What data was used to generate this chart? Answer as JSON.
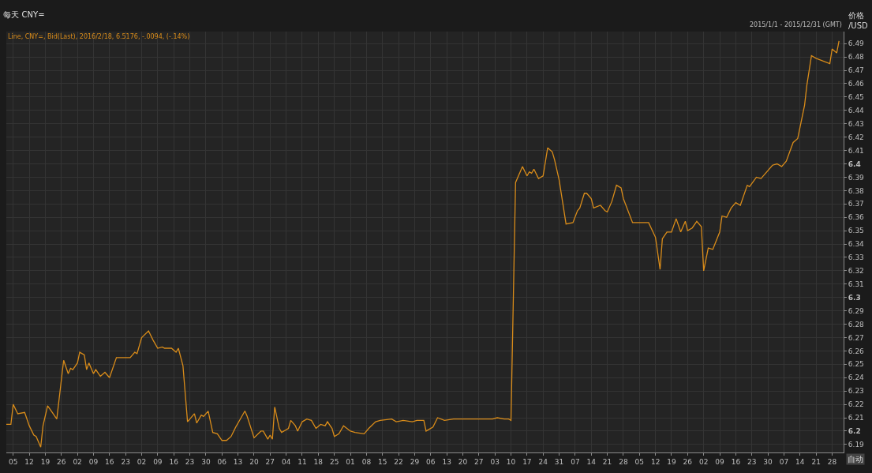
{
  "chart_data": {
    "type": "line",
    "title": "每天 CNY=",
    "subtitle": "Line, CNY=, Bid(Last), 2016/2/18, 6.5176, -.0094, (-.14%)",
    "ylabel": "价格 /USD",
    "annotations": [
      "2015/1/1 - 2015/12/31 (GMT)",
      "自动"
    ],
    "x": [
      "2015-01-02",
      "2015-01-04",
      "2015-01-05",
      "2015-01-07",
      "2015-01-10",
      "2015-01-12",
      "2015-01-14",
      "2015-01-15",
      "2015-01-17",
      "2015-01-18",
      "2015-01-20",
      "2015-01-22",
      "2015-01-24",
      "2015-01-27",
      "2015-01-29",
      "2015-01-30",
      "2015-01-31",
      "2015-02-02",
      "2015-02-03",
      "2015-02-05",
      "2015-02-06",
      "2015-02-07",
      "2015-02-09",
      "2015-02-10",
      "2015-02-12",
      "2015-02-14",
      "2015-02-16",
      "2015-02-19",
      "2015-02-25",
      "2015-02-27",
      "2015-02-28",
      "2015-03-02",
      "2015-03-05",
      "2015-03-07",
      "2015-03-09",
      "2015-03-11",
      "2015-03-12",
      "2015-03-15",
      "2015-03-17",
      "2015-03-18",
      "2015-03-20",
      "2015-03-22",
      "2015-03-25",
      "2015-03-26",
      "2015-03-28",
      "2015-03-29",
      "2015-03-31",
      "2015-04-02",
      "2015-04-04",
      "2015-04-06",
      "2015-04-08",
      "2015-04-10",
      "2015-04-12",
      "2015-04-14",
      "2015-04-16",
      "2015-04-17",
      "2015-04-20",
      "2015-04-23",
      "2015-04-24",
      "2015-04-26",
      "2015-04-27",
      "2015-04-28",
      "2015-04-29",
      "2015-05-01",
      "2015-05-02",
      "2015-05-05",
      "2015-05-06",
      "2015-05-08",
      "2015-05-09",
      "2015-05-11",
      "2015-05-13",
      "2015-05-15",
      "2015-05-17",
      "2015-05-19",
      "2015-05-21",
      "2015-05-22",
      "2015-05-24",
      "2015-05-25",
      "2015-05-27",
      "2015-05-29",
      "2015-06-01",
      "2015-06-03",
      "2015-06-07",
      "2015-06-09",
      "2015-06-12",
      "2015-06-14",
      "2015-06-19",
      "2015-06-21",
      "2015-06-24",
      "2015-06-28",
      "2015-06-30",
      "2015-07-03",
      "2015-07-04",
      "2015-07-07",
      "2015-07-09",
      "2015-07-12",
      "2015-07-16",
      "2015-07-21",
      "2015-07-26",
      "2015-07-30",
      "2015-08-02",
      "2015-08-04",
      "2015-08-07",
      "2015-08-09",
      "2015-08-10",
      "2015-08-12",
      "2015-08-15",
      "2015-08-17",
      "2015-08-18",
      "2015-08-19",
      "2015-08-20",
      "2015-08-22",
      "2015-08-24",
      "2015-08-26",
      "2015-08-28",
      "2015-08-29",
      "2015-08-31",
      "2015-09-03",
      "2015-09-06",
      "2015-09-08",
      "2015-09-09",
      "2015-09-11",
      "2015-09-12",
      "2015-09-14",
      "2015-09-15",
      "2015-09-18",
      "2015-09-20",
      "2015-09-21",
      "2015-09-23",
      "2015-09-25",
      "2015-09-27",
      "2015-09-28",
      "2015-10-02",
      "2015-10-09",
      "2015-10-12",
      "2015-10-14",
      "2015-10-15",
      "2015-10-17",
      "2015-10-19",
      "2015-10-21",
      "2015-10-23",
      "2015-10-25",
      "2015-10-26",
      "2015-10-28",
      "2015-10-30",
      "2015-11-01",
      "2015-11-02",
      "2015-11-04",
      "2015-11-06",
      "2015-11-09",
      "2015-11-10",
      "2015-11-12",
      "2015-11-14",
      "2015-11-16",
      "2015-11-18",
      "2015-11-21",
      "2015-11-22",
      "2015-11-25",
      "2015-11-27",
      "2015-12-02",
      "2015-12-04",
      "2015-12-06",
      "2015-12-08",
      "2015-12-11",
      "2015-12-13",
      "2015-12-16",
      "2015-12-17",
      "2015-12-19",
      "2015-12-21",
      "2015-12-27",
      "2015-12-28",
      "2015-12-30",
      "2015-12-31"
    ],
    "series": [
      {
        "color": "#d98c1a",
        "values": [
          6.205,
          6.205,
          6.22,
          6.213,
          6.214,
          6.204,
          6.197,
          6.196,
          6.188,
          6.204,
          6.219,
          6.214,
          6.209,
          6.253,
          6.243,
          6.247,
          6.246,
          6.251,
          6.259,
          6.257,
          6.246,
          6.251,
          6.243,
          6.246,
          6.241,
          6.244,
          6.24,
          6.255,
          6.255,
          6.259,
          6.258,
          6.27,
          6.275,
          6.268,
          6.262,
          6.263,
          6.262,
          6.262,
          6.259,
          6.262,
          6.249,
          6.207,
          6.213,
          6.206,
          6.212,
          6.211,
          6.215,
          6.199,
          6.198,
          6.193,
          6.193,
          6.196,
          6.203,
          6.209,
          6.215,
          6.211,
          6.195,
          6.2,
          6.2,
          6.194,
          6.197,
          6.194,
          6.218,
          6.202,
          6.199,
          6.202,
          6.208,
          6.204,
          6.2,
          6.207,
          6.209,
          6.208,
          6.202,
          6.205,
          6.204,
          6.207,
          6.202,
          6.196,
          6.198,
          6.204,
          6.2,
          6.199,
          6.198,
          6.202,
          6.207,
          6.208,
          6.209,
          6.207,
          6.208,
          6.207,
          6.208,
          6.208,
          6.2,
          6.203,
          6.21,
          6.208,
          6.209,
          6.209,
          6.209,
          6.209,
          6.209,
          6.21,
          6.209,
          6.209,
          6.208,
          6.386,
          6.398,
          6.391,
          6.394,
          6.393,
          6.396,
          6.389,
          6.391,
          6.412,
          6.409,
          6.403,
          6.388,
          6.355,
          6.356,
          6.365,
          6.367,
          6.378,
          6.378,
          6.374,
          6.367,
          6.369,
          6.365,
          6.364,
          6.372,
          6.384,
          6.382,
          6.374,
          6.356,
          6.356,
          6.345,
          6.321,
          6.344,
          6.349,
          6.349,
          6.359,
          6.349,
          6.357,
          6.35,
          6.352,
          6.357,
          6.353,
          6.32,
          6.337,
          6.336,
          6.349,
          6.361,
          6.36,
          6.367,
          6.371,
          6.369,
          6.384,
          6.383,
          6.39,
          6.389,
          6.399,
          6.4,
          6.398,
          6.402,
          6.416,
          6.419,
          6.444,
          6.459,
          6.481,
          6.479,
          6.475,
          6.486,
          6.483,
          6.492
        ]
      }
    ],
    "xlim": [
      "2015-01-02",
      "2016-01-02"
    ],
    "xticks": [
      {
        "value": "2015-01-05",
        "label": "05"
      },
      {
        "value": "2015-01-12",
        "label": "12"
      },
      {
        "value": "2015-01-19",
        "label": "19"
      },
      {
        "value": "2015-01-26",
        "label": "26"
      },
      {
        "value": "2015-02-02",
        "label": "02"
      },
      {
        "value": "2015-02-09",
        "label": "09"
      },
      {
        "value": "2015-02-16",
        "label": "16"
      },
      {
        "value": "2015-02-23",
        "label": "23"
      },
      {
        "value": "2015-03-02",
        "label": "02"
      },
      {
        "value": "2015-03-09",
        "label": "09"
      },
      {
        "value": "2015-03-16",
        "label": "16"
      },
      {
        "value": "2015-03-23",
        "label": "23"
      },
      {
        "value": "2015-03-30",
        "label": "30"
      },
      {
        "value": "2015-04-06",
        "label": "06"
      },
      {
        "value": "2015-04-13",
        "label": "13"
      },
      {
        "value": "2015-04-20",
        "label": "20"
      },
      {
        "value": "2015-04-27",
        "label": "27"
      },
      {
        "value": "2015-05-04",
        "label": "04"
      },
      {
        "value": "2015-05-11",
        "label": "11"
      },
      {
        "value": "2015-05-18",
        "label": "18"
      },
      {
        "value": "2015-05-25",
        "label": "25"
      },
      {
        "value": "2015-06-01",
        "label": "01"
      },
      {
        "value": "2015-06-08",
        "label": "08"
      },
      {
        "value": "2015-06-15",
        "label": "15"
      },
      {
        "value": "2015-06-22",
        "label": "22"
      },
      {
        "value": "2015-06-29",
        "label": "29"
      },
      {
        "value": "2015-07-06",
        "label": "06"
      },
      {
        "value": "2015-07-13",
        "label": "13"
      },
      {
        "value": "2015-07-20",
        "label": "20"
      },
      {
        "value": "2015-07-27",
        "label": "27"
      },
      {
        "value": "2015-08-03",
        "label": "03"
      },
      {
        "value": "2015-08-10",
        "label": "10"
      },
      {
        "value": "2015-08-17",
        "label": "17"
      },
      {
        "value": "2015-08-24",
        "label": "24"
      },
      {
        "value": "2015-08-31",
        "label": "31"
      },
      {
        "value": "2015-09-07",
        "label": "07"
      },
      {
        "value": "2015-09-14",
        "label": "14"
      },
      {
        "value": "2015-09-21",
        "label": "21"
      },
      {
        "value": "2015-09-28",
        "label": "28"
      },
      {
        "value": "2015-10-05",
        "label": "05"
      },
      {
        "value": "2015-10-12",
        "label": "12"
      },
      {
        "value": "2015-10-19",
        "label": "19"
      },
      {
        "value": "2015-10-26",
        "label": "26"
      },
      {
        "value": "2015-11-02",
        "label": "02"
      },
      {
        "value": "2015-11-09",
        "label": "09"
      },
      {
        "value": "2015-11-16",
        "label": "16"
      },
      {
        "value": "2015-11-23",
        "label": "23"
      },
      {
        "value": "2015-11-30",
        "label": "30"
      },
      {
        "value": "2015-12-07",
        "label": "07"
      },
      {
        "value": "2015-12-14",
        "label": "14"
      },
      {
        "value": "2015-12-21",
        "label": "21"
      },
      {
        "value": "2015-12-28",
        "label": "28"
      }
    ],
    "ylim": [
      6.184,
      6.499
    ],
    "yticks": [
      6.19,
      6.2,
      6.21,
      6.22,
      6.23,
      6.24,
      6.25,
      6.26,
      6.27,
      6.28,
      6.29,
      6.3,
      6.31,
      6.32,
      6.33,
      6.34,
      6.35,
      6.36,
      6.37,
      6.38,
      6.39,
      6.4,
      6.41,
      6.42,
      6.43,
      6.44,
      6.45,
      6.46,
      6.47,
      6.48,
      6.49
    ],
    "grid": true,
    "marker": "none",
    "line_style": "solid"
  }
}
